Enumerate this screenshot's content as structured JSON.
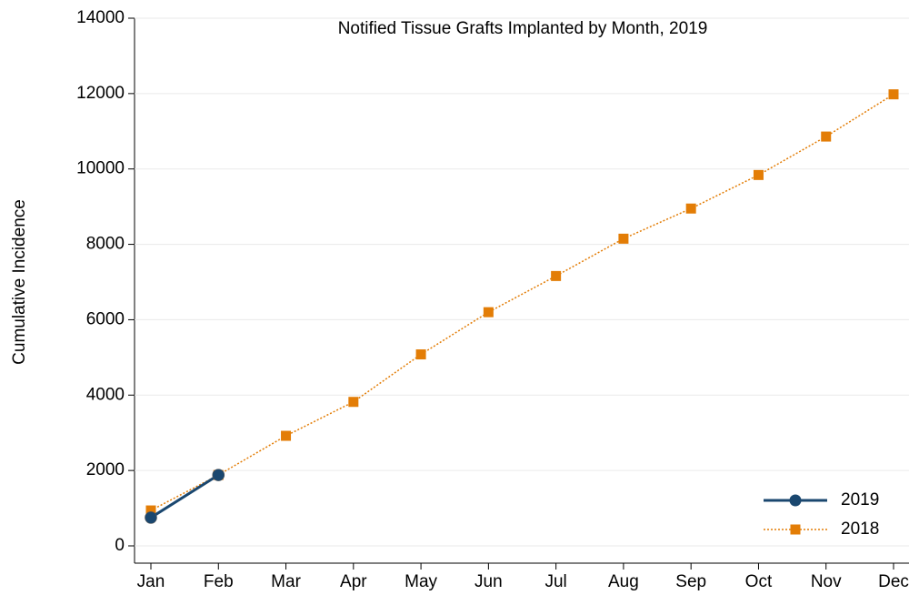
{
  "chart_data": {
    "type": "line",
    "title": "Notified Tissue Grafts Implanted by Month, 2019",
    "y_label": "Cumulative Incidence",
    "categories": [
      "Jan",
      "Feb",
      "Mar",
      "Apr",
      "May",
      "Jun",
      "Jul",
      "Aug",
      "Sep",
      "Oct",
      "Nov",
      "Dec"
    ],
    "series": [
      {
        "name": "2019",
        "color": "#1a476f",
        "style": "solid",
        "marker": "circle",
        "values": [
          750,
          1880,
          null,
          null,
          null,
          null,
          null,
          null,
          null,
          null,
          null,
          null
        ]
      },
      {
        "name": "2018",
        "color": "#e37d06",
        "style": "dotted",
        "marker": "square",
        "values": [
          940,
          1880,
          2920,
          3820,
          5080,
          6200,
          7160,
          8150,
          8950,
          9840,
          10860,
          11980
        ]
      }
    ],
    "ylim": [
      0,
      14000
    ],
    "yticks": [
      0,
      2000,
      4000,
      6000,
      8000,
      10000,
      12000,
      14000
    ],
    "grid": true,
    "legend": "lower right"
  }
}
